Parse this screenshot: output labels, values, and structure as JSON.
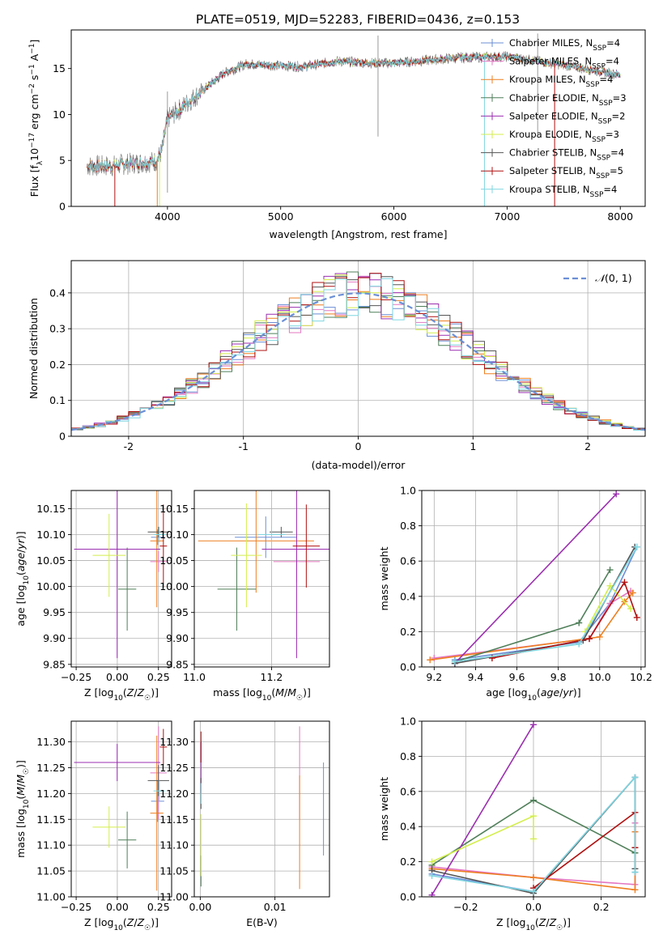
{
  "figure_title": "PLATE=0519, MJD=52283, FIBERID=0436, z=0.153",
  "colors": {
    "Chabrier MILES": "#6b8fd6",
    "Salpeter MILES": "#e377c2",
    "Kroupa MILES": "#ee7f20",
    "Chabrier ELODIE": "#4f7f59",
    "Salpeter ELODIE": "#9b2fb0",
    "Kroupa ELODIE": "#d4ee4c",
    "Chabrier STELIB": "#555555",
    "Salpeter STELIB": "#b01010",
    "Kroupa STELIB": "#7fd6e0",
    "gaussian": "#6b8fd6",
    "grid": "#b0b0b0"
  },
  "chart_data": [
    {
      "id": "spectrum",
      "type": "line",
      "title": "PLATE=0519, MJD=52283, FIBERID=0436, z=0.153",
      "xlabel": "wavelength [Angstrom, rest frame]",
      "ylabel": "Flux [f_λ 10^-17 erg cm^-2 s^-1 A^-1]",
      "xlim": [
        3150,
        8220
      ],
      "ylim": [
        0,
        19.2
      ],
      "xticks": [
        4000,
        5000,
        6000,
        7000,
        8000
      ],
      "yticks": [
        0,
        5,
        10,
        15
      ],
      "grid": false,
      "legend_position": "top-right",
      "data_range_x": [
        3290,
        8000
      ],
      "continuum": {
        "x": [
          3290,
          3500,
          3700,
          3900,
          3950,
          4000,
          4100,
          4300,
          4500,
          4700,
          5000,
          5200,
          5500,
          5800,
          6000,
          6300,
          6600,
          7000,
          7500,
          8000
        ],
        "y": [
          4.4,
          4.4,
          4.7,
          4.9,
          6.0,
          9.5,
          10.5,
          12.5,
          14.5,
          15.5,
          15.3,
          15.2,
          15.8,
          15.6,
          15.6,
          15.9,
          16.2,
          16.3,
          15.4,
          14.3
        ]
      },
      "model_spikes": [
        {
          "series": "Salpeter STELIB",
          "x": 3535
        },
        {
          "series": "Kroupa MILES",
          "x": 3910
        },
        {
          "series": "Kroupa ELODIE",
          "x": 3930
        },
        {
          "series": "Kroupa STELIB",
          "x": 6800
        },
        {
          "series": "Salpeter STELIB",
          "x": 7420
        }
      ],
      "series": [
        {
          "name": "Chabrier MILES, N_SSP=4"
        },
        {
          "name": "Salpeter MILES, N_SSP=4"
        },
        {
          "name": "Kroupa MILES, N_SSP=4"
        },
        {
          "name": "Chabrier ELODIE, N_SSP=3"
        },
        {
          "name": "Salpeter ELODIE, N_SSP=2"
        },
        {
          "name": "Kroupa ELODIE, N_SSP=3"
        },
        {
          "name": "Chabrier STELIB, N_SSP=4"
        },
        {
          "name": "Salpeter STELIB, N_SSP=5"
        },
        {
          "name": "Kroupa STELIB, N_SSP=4"
        }
      ]
    },
    {
      "id": "residuals",
      "type": "line",
      "xlabel": "(data-model)/error",
      "ylabel": "Normed distribution",
      "xlim": [
        -2.5,
        2.5
      ],
      "ylim": [
        0,
        0.49
      ],
      "xticks": [
        -2,
        -1,
        0,
        1,
        2
      ],
      "yticks": [
        0.0,
        0.1,
        0.2,
        0.3,
        0.4
      ],
      "grid": true,
      "legend": [
        "N(0,1)"
      ],
      "legend_position": "top-right",
      "bin_width": 0.1
    },
    {
      "id": "age-vs-Z",
      "type": "scatter",
      "xlabel": "Z [log10(Z/Z☉)]",
      "ylabel": "age [log10(age/yr)]",
      "xlim": [
        -0.28,
        0.33
      ],
      "ylim": [
        9.845,
        10.185
      ],
      "xticks": [
        -0.25,
        0.0,
        0.25
      ],
      "xticklabels": [
        "−0.25",
        "0.00",
        "0.25"
      ],
      "yticks": [
        9.85,
        9.9,
        9.95,
        10.0,
        10.05,
        10.1,
        10.15
      ],
      "yticklabels": [
        "9.85",
        "9.90",
        "9.95",
        "10.00",
        "10.05",
        "10.10",
        "10.15"
      ],
      "grid": true,
      "points": [
        {
          "series": "Chabrier MILES",
          "x": 0.245,
          "y": 10.095,
          "ex": 0.04,
          "ey": 0.015
        },
        {
          "series": "Salpeter MILES",
          "x": 0.25,
          "y": 10.048,
          "ex": 0.05,
          "ey": 0.02
        },
        {
          "series": "Kroupa MILES",
          "x": 0.24,
          "y": 10.088,
          "ex": 0.04,
          "ey": 0.128
        },
        {
          "series": "Chabrier ELODIE",
          "x": 0.06,
          "y": 9.995,
          "ex": 0.055,
          "ey": 0.08
        },
        {
          "series": "Salpeter ELODIE",
          "x": -0.001,
          "y": 10.072,
          "ex": 0.262,
          "ey": 0.21
        },
        {
          "series": "Kroupa ELODIE",
          "x": -0.05,
          "y": 10.06,
          "ex": 0.1,
          "ey": 0.08
        },
        {
          "series": "Chabrier STELIB",
          "x": 0.25,
          "y": 10.105,
          "ex": 0.065,
          "ey": 0.01
        },
        {
          "series": "Salpeter STELIB",
          "x": 0.28,
          "y": 10.078,
          "ex": 0.022,
          "ey": 0.08
        },
        {
          "series": "Kroupa STELIB",
          "x": 0.255,
          "y": 10.1,
          "ex": 0.035,
          "ey": 0.015
        }
      ]
    },
    {
      "id": "age-vs-mass",
      "type": "scatter",
      "xlabel": "mass [log10(M/M☉)]",
      "xlim": [
        11.0,
        11.35
      ],
      "ylim": [
        9.845,
        10.185
      ],
      "xticks": [
        11.0,
        11.2
      ],
      "xticklabels": [
        "11.0",
        "11.2"
      ],
      "yticks": [
        9.85,
        9.9,
        9.95,
        10.0,
        10.05,
        10.1,
        10.15
      ],
      "yticklabels": [
        "9.85",
        "9.90",
        "9.95",
        "10.00",
        "10.05",
        "10.10",
        "10.15"
      ],
      "grid": true,
      "points": [
        {
          "series": "Chabrier MILES",
          "x": 11.185,
          "y": 10.095,
          "ex": 0.08,
          "ey": 0.04
        },
        {
          "series": "Salpeter MILES",
          "x": 11.265,
          "y": 10.048,
          "ex": 0.06,
          "ey": 0.04
        },
        {
          "series": "Kroupa MILES",
          "x": 11.16,
          "y": 10.088,
          "ex": 0.15,
          "ey": 0.1
        },
        {
          "series": "Chabrier ELODIE",
          "x": 11.11,
          "y": 9.995,
          "ex": 0.05,
          "ey": 0.08
        },
        {
          "series": "Salpeter ELODIE",
          "x": 11.265,
          "y": 10.072,
          "ex": 0.09,
          "ey": 0.21
        },
        {
          "series": "Kroupa ELODIE",
          "x": 11.135,
          "y": 10.06,
          "ex": 0.04,
          "ey": 0.1
        },
        {
          "series": "Chabrier STELIB",
          "x": 11.225,
          "y": 10.105,
          "ex": 0.03,
          "ey": 0.01
        },
        {
          "series": "Salpeter STELIB",
          "x": 11.29,
          "y": 10.078,
          "ex": 0.035,
          "ey": 0.08
        },
        {
          "series": "Kroupa STELIB",
          "x": 11.2,
          "y": 10.1,
          "ex": 0.035,
          "ey": 0.015
        }
      ]
    },
    {
      "id": "massweight-vs-age",
      "type": "line",
      "xlabel": "age [log10(age/yr)]",
      "ylabel": "mass weight",
      "xlim": [
        9.14,
        10.22
      ],
      "ylim": [
        0,
        1
      ],
      "xticks": [
        9.2,
        9.4,
        9.6,
        9.8,
        10.0,
        10.2
      ],
      "xticklabels": [
        "9.2",
        "9.4",
        "9.6",
        "9.8",
        "10.0",
        "10.2"
      ],
      "yticks": [
        0,
        0.2,
        0.4,
        0.6,
        0.8,
        1.0
      ],
      "yticklabels": [
        "0.0",
        "0.2",
        "0.4",
        "0.6",
        "0.8",
        "1.0"
      ],
      "grid": true,
      "series": [
        {
          "name": "Chabrier MILES",
          "x": [
            9.3,
            9.9,
            10.05,
            10.18
          ],
          "y": [
            0.04,
            0.14,
            0.36,
            0.68
          ]
        },
        {
          "name": "Salpeter MILES",
          "x": [
            9.2,
            9.95,
            10.05,
            10.15
          ],
          "y": [
            0.05,
            0.16,
            0.36,
            0.43
          ]
        },
        {
          "name": "Kroupa MILES",
          "x": [
            9.18,
            10.0,
            10.12,
            10.16
          ],
          "y": [
            0.04,
            0.17,
            0.37,
            0.42
          ]
        },
        {
          "name": "Chabrier ELODIE",
          "x": [
            9.3,
            9.9,
            10.05
          ],
          "y": [
            0.03,
            0.25,
            0.55
          ]
        },
        {
          "name": "Salpeter ELODIE",
          "x": [
            9.3,
            10.08
          ],
          "y": [
            0.02,
            0.98
          ]
        },
        {
          "name": "Kroupa ELODIE",
          "x": [
            9.93,
            10.05,
            10.15
          ],
          "y": [
            0.2,
            0.46,
            0.33
          ]
        },
        {
          "name": "Chabrier STELIB",
          "x": [
            9.3,
            9.92,
            10.17
          ],
          "y": [
            0.02,
            0.15,
            0.68
          ]
        },
        {
          "name": "Salpeter STELIB",
          "x": [
            9.48,
            9.95,
            10.12,
            10.18
          ],
          "y": [
            0.05,
            0.16,
            0.48,
            0.28
          ]
        },
        {
          "name": "Kroupa STELIB",
          "x": [
            9.3,
            9.9,
            10.18
          ],
          "y": [
            0.03,
            0.13,
            0.68
          ]
        }
      ]
    },
    {
      "id": "mass-vs-Z",
      "type": "scatter",
      "xlabel": "Z [log10(Z/Z☉)]",
      "ylabel": "mass [log10(M/M☉)]",
      "xlim": [
        -0.28,
        0.33
      ],
      "ylim": [
        11.0,
        11.34
      ],
      "xticks": [
        -0.25,
        0.0,
        0.25
      ],
      "xticklabels": [
        "−0.25",
        "0.00",
        "0.25"
      ],
      "yticks": [
        11.0,
        11.05,
        11.1,
        11.15,
        11.2,
        11.25,
        11.3
      ],
      "yticklabels": [
        "11.00",
        "11.05",
        "11.10",
        "11.15",
        "11.20",
        "11.25",
        "11.30"
      ],
      "grid": true,
      "points": [
        {
          "series": "Chabrier MILES",
          "x": 0.245,
          "y": 11.185,
          "ex": 0.04,
          "ey": 0.04
        },
        {
          "series": "Salpeter MILES",
          "x": 0.25,
          "y": 11.24,
          "ex": 0.05,
          "ey": 0.09
        },
        {
          "series": "Kroupa MILES",
          "x": 0.24,
          "y": 11.162,
          "ex": 0.04,
          "ey": 0.15
        },
        {
          "series": "Chabrier ELODIE",
          "x": 0.06,
          "y": 11.11,
          "ex": 0.055,
          "ey": 0.055
        },
        {
          "series": "Salpeter ELODIE",
          "x": -0.001,
          "y": 11.26,
          "ex": 0.262,
          "ey": 0.036
        },
        {
          "series": "Kroupa ELODIE",
          "x": -0.05,
          "y": 11.135,
          "ex": 0.1,
          "ey": 0.04
        },
        {
          "series": "Chabrier STELIB",
          "x": 0.25,
          "y": 11.225,
          "ex": 0.065,
          "ey": 0.03
        },
        {
          "series": "Salpeter STELIB",
          "x": 0.28,
          "y": 11.29,
          "ex": 0.022,
          "ey": 0.035
        },
        {
          "series": "Kroupa STELIB",
          "x": 0.255,
          "y": 11.205,
          "ex": 0.035,
          "ey": 0.02
        }
      ]
    },
    {
      "id": "mass-vs-EBV",
      "type": "scatter",
      "xlabel": "E(B-V)",
      "xlim": [
        -0.0008,
        0.0173
      ],
      "ylim": [
        11.0,
        11.34
      ],
      "xticks": [
        0.0,
        0.01
      ],
      "xticklabels": [
        "0.00",
        "0.01"
      ],
      "yticks": [
        11.0,
        11.05,
        11.1,
        11.15,
        11.2,
        11.25,
        11.3
      ],
      "yticklabels": [
        "11.00",
        "11.05",
        "11.10",
        "11.15",
        "11.20",
        "11.25",
        "11.30"
      ],
      "grid": true,
      "points": [
        {
          "series": "Chabrier MILES",
          "x": 0.0165,
          "y": 11.17,
          "ex": 0.0,
          "ey": 0.09
        },
        {
          "series": "Salpeter MILES",
          "x": 0.0133,
          "y": 11.24,
          "ex": 0.0,
          "ey": 0.09
        },
        {
          "series": "Kroupa MILES",
          "x": 0.0133,
          "y": 11.125,
          "ex": 0.0,
          "ey": 0.11
        },
        {
          "series": "Chabrier ELODIE",
          "x": 0.0001,
          "y": 11.05,
          "ex": 0.0,
          "ey": 0.03
        },
        {
          "series": "Salpeter ELODIE",
          "x": 0.0001,
          "y": 11.25,
          "ex": 0.0,
          "ey": 0.05
        },
        {
          "series": "Kroupa ELODIE",
          "x": 0.0001,
          "y": 11.1,
          "ex": 0.0,
          "ey": 0.06
        },
        {
          "series": "Chabrier STELIB",
          "x": 0.0001,
          "y": 11.2,
          "ex": 0.0,
          "ey": 0.03
        },
        {
          "series": "Salpeter STELIB",
          "x": 0.0001,
          "y": 11.29,
          "ex": 0.0,
          "ey": 0.03
        },
        {
          "series": "Kroupa STELIB",
          "x": 0.0001,
          "y": 11.2,
          "ex": 0.0,
          "ey": 0.02
        }
      ]
    },
    {
      "id": "massweight-vs-Z",
      "type": "line",
      "xlabel": "Z [log10(Z/Z☉)]",
      "ylabel": "mass weight",
      "xlim": [
        -0.33,
        0.33
      ],
      "ylim": [
        0,
        1
      ],
      "xticks": [
        -0.2,
        0.0,
        0.2
      ],
      "xticklabels": [
        "−0.2",
        "0.0",
        "0.2"
      ],
      "yticks": [
        0,
        0.2,
        0.4,
        0.6,
        0.8,
        1.0
      ],
      "yticklabels": [
        "0.0",
        "0.2",
        "0.4",
        "0.6",
        "0.8",
        "1.0"
      ],
      "grid": true,
      "series": [
        {
          "name": "Chabrier MILES",
          "x": [
            -0.3,
            0.0,
            0.3,
            0.3
          ],
          "y": [
            0.13,
            0.03,
            0.68,
            0.14
          ]
        },
        {
          "name": "Salpeter MILES",
          "x": [
            -0.3,
            0.0,
            0.3,
            0.3
          ],
          "y": [
            0.17,
            0.11,
            0.07,
            0.42
          ]
        },
        {
          "name": "Kroupa MILES",
          "x": [
            -0.3,
            0.0,
            0.3,
            0.3
          ],
          "y": [
            0.16,
            0.11,
            0.04,
            0.37
          ]
        },
        {
          "name": "Chabrier ELODIE",
          "x": [
            -0.3,
            0.0,
            0.3
          ],
          "y": [
            0.18,
            0.55,
            0.25
          ]
        },
        {
          "name": "Salpeter ELODIE",
          "x": [
            -0.3,
            0.0
          ],
          "y": [
            0.01,
            0.98
          ]
        },
        {
          "name": "Kroupa ELODIE",
          "x": [
            -0.3,
            0.0,
            0.0
          ],
          "y": [
            0.2,
            0.46,
            0.33
          ]
        },
        {
          "name": "Chabrier STELIB",
          "x": [
            -0.3,
            0.0,
            0.3,
            0.3
          ],
          "y": [
            0.15,
            0.02,
            0.68,
            0.16
          ]
        },
        {
          "name": "Salpeter STELIB",
          "x": [
            0.0,
            0.3,
            0.3
          ],
          "y": [
            0.05,
            0.48,
            0.28
          ]
        },
        {
          "name": "Kroupa STELIB",
          "x": [
            -0.3,
            0.0,
            0.3,
            0.3
          ],
          "y": [
            0.12,
            0.03,
            0.68,
            0.14
          ]
        }
      ]
    }
  ]
}
